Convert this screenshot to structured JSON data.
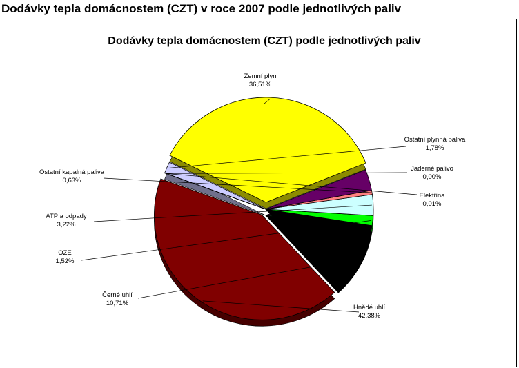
{
  "page": {
    "heading": "Dodávky tepla domácnostem (CZT) v roce 2007 podle jednotlivých paliv"
  },
  "chart_data": {
    "type": "pie",
    "title": "Dodávky tepla domácnostem (CZT) podle jednotlivých paliv",
    "slices": [
      {
        "label": "Zemní plyn",
        "value": 36.51,
        "value_text": "36,51%",
        "color": "#FFFF00"
      },
      {
        "label": "Ostatní plynná paliva",
        "value": 1.78,
        "value_text": "1,78%",
        "color": "#CCCCFF"
      },
      {
        "label": "Jaderné palivo",
        "value": 0.0,
        "value_text": "0,00%",
        "color": "#993366"
      },
      {
        "label": "Elektřina",
        "value": 0.01,
        "value_text": "0,01%",
        "color": "#993366"
      },
      {
        "label": "Hnědé uhlí",
        "value": 42.38,
        "value_text": "42,38%",
        "color": "#800000"
      },
      {
        "label": "Černé uhlí",
        "value": 10.71,
        "value_text": "10,71%",
        "color": "#000000"
      },
      {
        "label": "OZE",
        "value": 1.52,
        "value_text": "1,52%",
        "color": "#00FF00"
      },
      {
        "label": "ATP a odpady",
        "value": 3.22,
        "value_text": "3,22%",
        "color": "#CCFFFF"
      },
      {
        "label": "Ostatní kapalná paliva",
        "value": 0.63,
        "value_text": "0,63%",
        "color": "#FF8080"
      },
      {
        "label": "",
        "value": 3.24,
        "value_text": "",
        "color": "#660066"
      }
    ],
    "legend": "none",
    "style": "3d-exploded"
  }
}
